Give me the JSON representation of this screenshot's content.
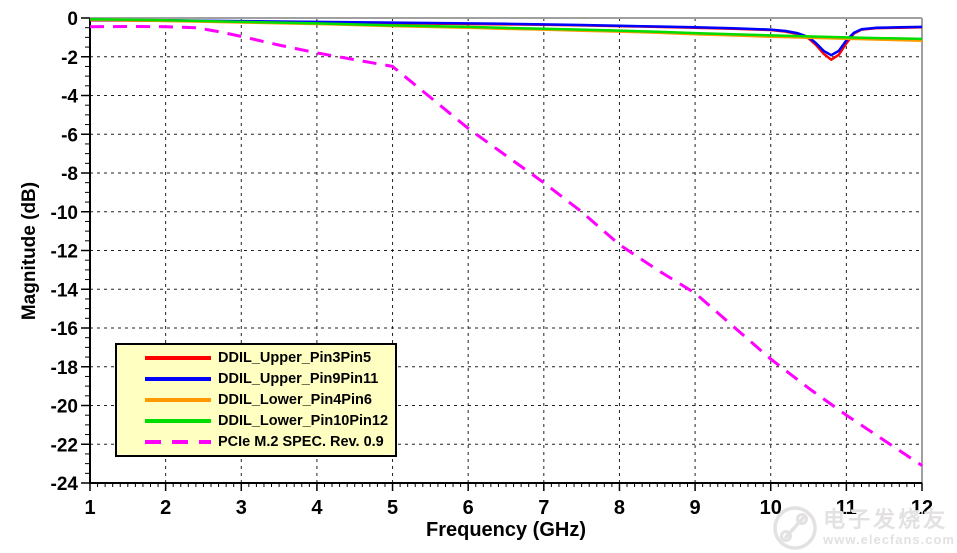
{
  "chart_data": {
    "type": "line",
    "xlabel": "Frequency (GHz)",
    "ylabel": "Magnitude (dB)",
    "xlim": [
      1,
      12
    ],
    "ylim": [
      -24,
      0
    ],
    "x_ticks": [
      1,
      2,
      3,
      4,
      5,
      6,
      7,
      8,
      9,
      10,
      11,
      12
    ],
    "y_ticks": [
      0,
      -2,
      -4,
      -6,
      -8,
      -10,
      -12,
      -14,
      -16,
      -18,
      -20,
      -22,
      -24
    ],
    "x_minor_step": 0.1,
    "y_minor_step": 0.5,
    "grid": true,
    "grid_style": "dashed-black",
    "legend_position": "lower-left",
    "legend_bg": "#ffffc2",
    "series": [
      {
        "name": "DDIL_Upper_Pin3Pin5",
        "color": "#ff0000",
        "style": "solid",
        "points": [
          [
            1,
            -0.12
          ],
          [
            1.5,
            -0.13
          ],
          [
            2,
            -0.15
          ],
          [
            2.5,
            -0.17
          ],
          [
            3,
            -0.18
          ],
          [
            3.5,
            -0.2
          ],
          [
            4,
            -0.22
          ],
          [
            4.5,
            -0.24
          ],
          [
            5,
            -0.27
          ],
          [
            5.5,
            -0.29
          ],
          [
            6,
            -0.31
          ],
          [
            6.5,
            -0.33
          ],
          [
            7,
            -0.35
          ],
          [
            7.5,
            -0.38
          ],
          [
            8,
            -0.42
          ],
          [
            8.5,
            -0.46
          ],
          [
            9,
            -0.5
          ],
          [
            9.5,
            -0.55
          ],
          [
            10,
            -0.62
          ],
          [
            10.2,
            -0.7
          ],
          [
            10.35,
            -0.82
          ],
          [
            10.5,
            -1.05
          ],
          [
            10.6,
            -1.4
          ],
          [
            10.7,
            -1.85
          ],
          [
            10.8,
            -2.15
          ],
          [
            10.9,
            -1.9
          ],
          [
            11,
            -1.3
          ],
          [
            11.1,
            -0.8
          ],
          [
            11.2,
            -0.6
          ],
          [
            11.4,
            -0.52
          ],
          [
            11.7,
            -0.5
          ],
          [
            12,
            -0.48
          ]
        ]
      },
      {
        "name": "DDIL_Upper_Pin9Pin11",
        "color": "#0000ff",
        "style": "solid",
        "points": [
          [
            1,
            -0.1
          ],
          [
            1.5,
            -0.11
          ],
          [
            2,
            -0.12
          ],
          [
            2.5,
            -0.14
          ],
          [
            3,
            -0.16
          ],
          [
            3.5,
            -0.18
          ],
          [
            4,
            -0.2
          ],
          [
            4.5,
            -0.22
          ],
          [
            5,
            -0.24
          ],
          [
            5.5,
            -0.26
          ],
          [
            6,
            -0.28
          ],
          [
            6.5,
            -0.3
          ],
          [
            7,
            -0.33
          ],
          [
            7.5,
            -0.36
          ],
          [
            8,
            -0.4
          ],
          [
            8.5,
            -0.44
          ],
          [
            9,
            -0.48
          ],
          [
            9.5,
            -0.53
          ],
          [
            10,
            -0.6
          ],
          [
            10.2,
            -0.67
          ],
          [
            10.35,
            -0.78
          ],
          [
            10.5,
            -0.98
          ],
          [
            10.6,
            -1.3
          ],
          [
            10.7,
            -1.7
          ],
          [
            10.8,
            -1.92
          ],
          [
            10.9,
            -1.7
          ],
          [
            11,
            -1.15
          ],
          [
            11.1,
            -0.76
          ],
          [
            11.2,
            -0.58
          ],
          [
            11.4,
            -0.5
          ],
          [
            11.7,
            -0.48
          ],
          [
            12,
            -0.46
          ]
        ]
      },
      {
        "name": "DDIL_Lower_Pin4Pin6",
        "color": "#ff9900",
        "style": "solid",
        "points": [
          [
            1,
            -0.08
          ],
          [
            2,
            -0.15
          ],
          [
            3,
            -0.23
          ],
          [
            4,
            -0.31
          ],
          [
            5,
            -0.42
          ],
          [
            6,
            -0.5
          ],
          [
            6.5,
            -0.56
          ],
          [
            7,
            -0.6
          ],
          [
            7.5,
            -0.66
          ],
          [
            8,
            -0.7
          ],
          [
            8.5,
            -0.76
          ],
          [
            9,
            -0.84
          ],
          [
            9.5,
            -0.9
          ],
          [
            10,
            -0.97
          ],
          [
            10.5,
            -1.02
          ],
          [
            11,
            -1.07
          ],
          [
            11.5,
            -1.12
          ],
          [
            12,
            -1.17
          ]
        ]
      },
      {
        "name": "DDIL_Lower_Pin10Pin12",
        "color": "#00dd00",
        "style": "solid",
        "points": [
          [
            1,
            -0.06
          ],
          [
            2,
            -0.12
          ],
          [
            3,
            -0.2
          ],
          [
            4,
            -0.28
          ],
          [
            5,
            -0.38
          ],
          [
            6,
            -0.46
          ],
          [
            6.5,
            -0.51
          ],
          [
            7,
            -0.55
          ],
          [
            7.5,
            -0.6
          ],
          [
            8,
            -0.65
          ],
          [
            8.5,
            -0.71
          ],
          [
            9,
            -0.78
          ],
          [
            9.5,
            -0.84
          ],
          [
            10,
            -0.9
          ],
          [
            10.5,
            -0.95
          ],
          [
            11,
            -1.0
          ],
          [
            11.5,
            -1.04
          ],
          [
            12,
            -1.08
          ]
        ]
      },
      {
        "name": "PCIe M.2 SPEC. Rev. 0.9",
        "color": "#ff00ff",
        "style": "dashed",
        "points": [
          [
            1,
            -0.45
          ],
          [
            1.5,
            -0.44
          ],
          [
            2,
            -0.45
          ],
          [
            2.4,
            -0.5
          ],
          [
            2.7,
            -0.7
          ],
          [
            3,
            -0.95
          ],
          [
            3.5,
            -1.4
          ],
          [
            4,
            -1.8
          ],
          [
            4.5,
            -2.15
          ],
          [
            5,
            -2.5
          ],
          [
            5.5,
            -4.1
          ],
          [
            6,
            -5.7
          ],
          [
            6.5,
            -7.1
          ],
          [
            7,
            -8.5
          ],
          [
            7.5,
            -10.0
          ],
          [
            8,
            -11.7
          ],
          [
            8.5,
            -13.0
          ],
          [
            9,
            -14.2
          ],
          [
            9.5,
            -15.9
          ],
          [
            10,
            -17.6
          ],
          [
            10.5,
            -19.1
          ],
          [
            11,
            -20.5
          ],
          [
            11.5,
            -21.8
          ],
          [
            12,
            -23.1
          ]
        ]
      }
    ]
  },
  "watermark": {
    "brand": "电子发烧友",
    "url": "www.elecfans.com"
  },
  "frame_colors": {
    "left_bottom": "#000000",
    "top_right": "#a0a0a0"
  }
}
